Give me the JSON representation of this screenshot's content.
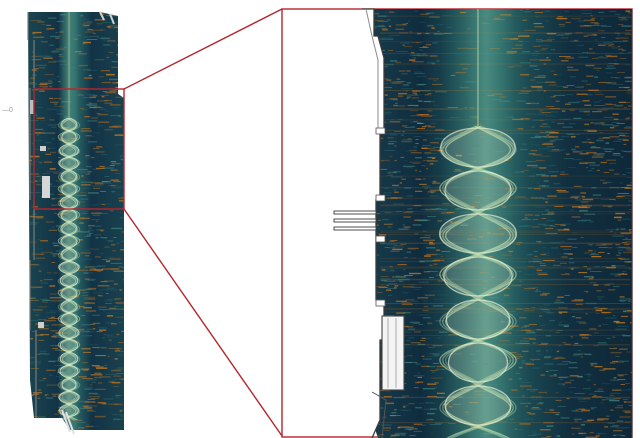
{
  "figure": {
    "description_free": true,
    "side_label": "—0"
  },
  "colors": {
    "background_dark": "#0f2c3e",
    "background_mid": "#1a4555",
    "background_teal": "#2c6d73",
    "noise_amber": "#b06a1f",
    "noise_orange": "#c97b25",
    "signal_pale_green": "#d6f0b8",
    "signal_light": "#eef8d8",
    "zoom_frame_red": "#b3262e",
    "edge_gray": "#6c6c6c",
    "edge_light": "#d8d8d8"
  },
  "panels": {
    "overview": {
      "label": "overview-waterfall"
    },
    "zoomed": {
      "label": "zoomed-waterfall"
    }
  }
}
